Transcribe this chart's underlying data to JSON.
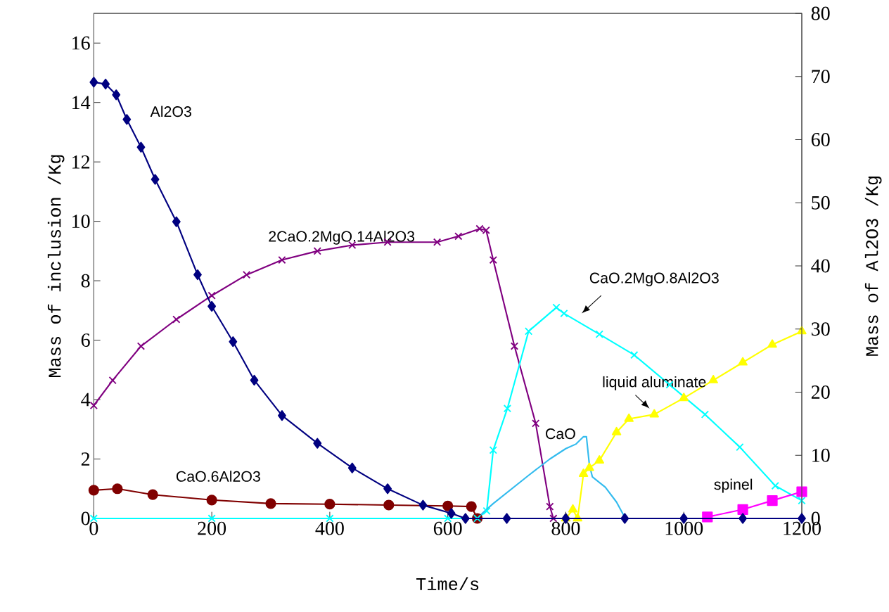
{
  "chart_data": {
    "type": "line",
    "xlabel": "Time/s",
    "ylabel": "Mass of inclusion /Kg",
    "y2label": "Mass of Al2O3 /Kg",
    "xlim": [
      0,
      1200
    ],
    "xticks": [
      0,
      200,
      400,
      600,
      800,
      1000,
      1200
    ],
    "ylim": [
      0,
      17
    ],
    "yticks": [
      0,
      2,
      4,
      6,
      8,
      10,
      12,
      14,
      16
    ],
    "y2lim": [
      0,
      80
    ],
    "y2ticks": [
      0,
      10,
      20,
      30,
      40,
      50,
      60,
      70,
      80
    ],
    "line_style": "solid",
    "series": [
      {
        "name": "Al2O3",
        "color": "#000080",
        "axis": "y2",
        "marker": "diamond",
        "x": [
          0,
          20,
          38,
          56,
          80,
          104,
          140,
          176,
          200,
          236,
          272,
          319,
          379,
          438,
          498,
          558,
          606,
          630,
          700,
          800,
          900,
          1000,
          1100,
          1200
        ],
        "values": [
          69.1,
          68.8,
          67.1,
          63.2,
          58.8,
          53.7,
          47.0,
          38.6,
          33.6,
          28.0,
          21.9,
          16.3,
          11.9,
          8.0,
          4.7,
          2.1,
          0.8,
          0,
          0,
          0,
          0,
          0,
          0,
          0
        ]
      },
      {
        "name": "2CaO.2MgO.14Al2O3",
        "color": "#800080",
        "marker": "cross",
        "x": [
          0,
          32,
          80,
          140,
          200,
          259,
          319,
          379,
          438,
          498,
          582,
          618,
          654,
          665,
          677,
          713,
          749,
          773,
          779
        ],
        "values": [
          3.8,
          4.65,
          5.8,
          6.7,
          7.5,
          8.2,
          8.7,
          9.0,
          9.2,
          9.3,
          9.3,
          9.5,
          9.75,
          9.7,
          8.7,
          5.8,
          3.2,
          0.4,
          0
        ]
      },
      {
        "name": "CaO.6Al2O3",
        "color": "#800000",
        "marker": "circle",
        "x": [
          0,
          40,
          100,
          200,
          300,
          400,
          500,
          600,
          640,
          650
        ],
        "values": [
          0.95,
          1.0,
          0.8,
          0.62,
          0.5,
          0.48,
          0.45,
          0.42,
          0.4,
          0
        ]
      },
      {
        "name": "CaO.2MgO.8Al2O3",
        "color": "#00ffff",
        "marker": "cross",
        "x": [
          0,
          200,
          400,
          600,
          650,
          666,
          677,
          701,
          737,
          784,
          797,
          857,
          916,
          976,
          1036,
          1095,
          1155,
          1200
        ],
        "values": [
          0,
          0,
          0,
          0,
          0,
          0.25,
          2.3,
          3.7,
          6.3,
          7.1,
          6.9,
          6.2,
          5.5,
          4.5,
          3.5,
          2.4,
          1.1,
          0.6
        ]
      },
      {
        "name": "CaO",
        "color": "#33bbee",
        "x": [
          650,
          660,
          677,
          737,
          773,
          800,
          817,
          830,
          835,
          840,
          845,
          867,
          886,
          901
        ],
        "values": [
          0,
          0.2,
          0.5,
          1.45,
          2.0,
          2.35,
          2.5,
          2.75,
          2.75,
          1.8,
          1.4,
          1.05,
          0.55,
          0
        ]
      },
      {
        "name": "liquid aluminate",
        "color": "#ffff00",
        "marker": "triangle",
        "x": [
          800,
          812,
          820,
          830,
          840,
          857,
          886,
          907,
          950,
          1000,
          1050,
          1100,
          1150,
          1200
        ],
        "values": [
          0,
          0.3,
          0,
          1.5,
          1.7,
          1.95,
          2.9,
          3.35,
          3.5,
          4.05,
          4.65,
          5.25,
          5.85,
          6.3
        ]
      },
      {
        "name": "spinel",
        "color": "#ff00ff",
        "marker": "square",
        "x": [
          1040,
          1100,
          1150,
          1200
        ],
        "values": [
          0.05,
          0.3,
          0.6,
          0.9
        ]
      }
    ]
  }
}
